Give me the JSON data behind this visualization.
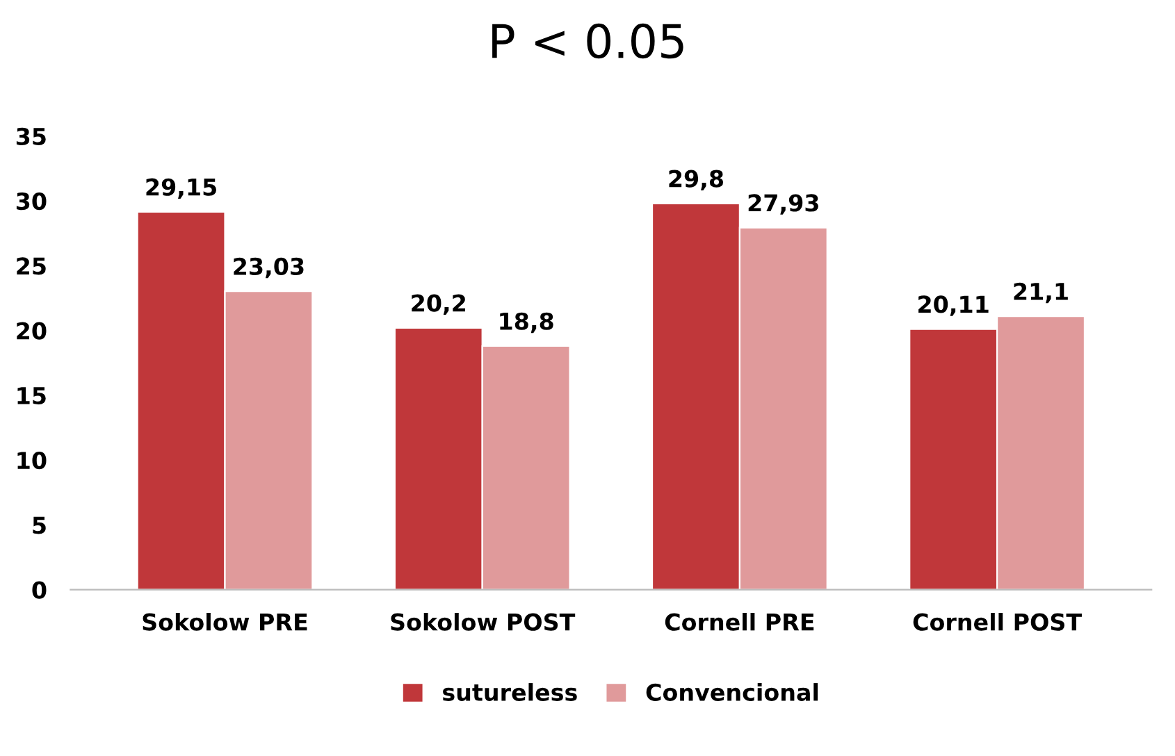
{
  "chart_data": {
    "type": "bar",
    "title": "P < 0.05",
    "categories": [
      "Sokolow PRE",
      "Sokolow POST",
      "Cornell PRE",
      "Cornell POST"
    ],
    "series": [
      {
        "name": "sutureless",
        "color": "#c0373a",
        "values": [
          29.15,
          20.2,
          29.8,
          20.11
        ],
        "value_labels": [
          "29,15",
          "20,2",
          "29,8",
          "20,11"
        ]
      },
      {
        "name": "Convencional",
        "color": "#e09a9b",
        "values": [
          23.03,
          18.8,
          27.93,
          21.1
        ],
        "value_labels": [
          "23,03",
          "18,8",
          "27,93",
          "21,1"
        ]
      }
    ],
    "ylim": [
      0,
      35
    ],
    "yticks": [
      0,
      5,
      10,
      15,
      20,
      25,
      30,
      35
    ],
    "grid": false,
    "legend": "bottom"
  }
}
